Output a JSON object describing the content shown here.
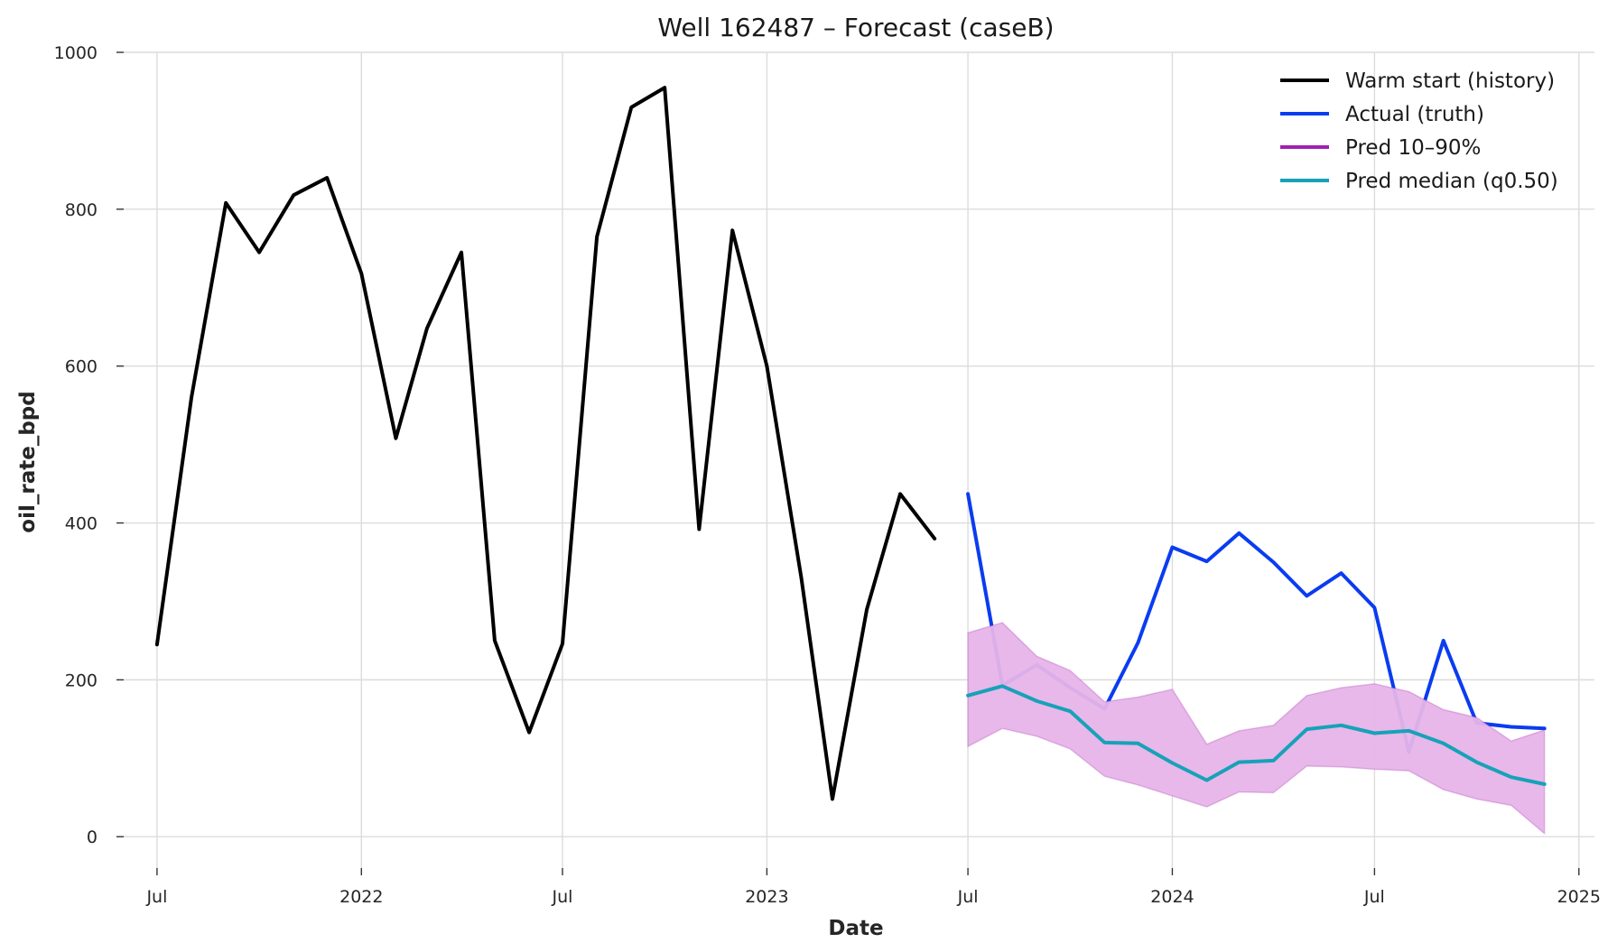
{
  "chart_data": {
    "type": "line",
    "title": "Well 162487 – Forecast (caseB)",
    "xlabel": "Date",
    "ylabel": "oil_rate_bpd",
    "xlim": [
      "2021-06-01",
      "2025-01-15"
    ],
    "ylim": [
      -40,
      1000
    ],
    "x_ticks": [
      {
        "date": "2021-07-01",
        "label": "Jul"
      },
      {
        "date": "2022-01-01",
        "label": "2022"
      },
      {
        "date": "2022-07-01",
        "label": "Jul"
      },
      {
        "date": "2023-01-01",
        "label": "2023"
      },
      {
        "date": "2023-07-01",
        "label": "Jul"
      },
      {
        "date": "2024-01-01",
        "label": "2024"
      },
      {
        "date": "2024-07-01",
        "label": "Jul"
      },
      {
        "date": "2025-01-01",
        "label": "2025"
      }
    ],
    "y_ticks": [
      0,
      200,
      400,
      600,
      800,
      1000
    ],
    "grid": true,
    "legend_position": "top-right",
    "series": [
      {
        "name": "Warm start (history)",
        "kind": "line",
        "color": "#000000",
        "points": [
          [
            "2021-07-01",
            245
          ],
          [
            "2021-08-01",
            560
          ],
          [
            "2021-09-01",
            808
          ],
          [
            "2021-10-01",
            745
          ],
          [
            "2021-11-01",
            818
          ],
          [
            "2021-12-01",
            840
          ],
          [
            "2022-01-01",
            718
          ],
          [
            "2022-02-01",
            508
          ],
          [
            "2022-03-01",
            648
          ],
          [
            "2022-04-01",
            745
          ],
          [
            "2022-05-01",
            250
          ],
          [
            "2022-06-01",
            133
          ],
          [
            "2022-07-01",
            246
          ],
          [
            "2022-08-01",
            765
          ],
          [
            "2022-09-01",
            930
          ],
          [
            "2022-10-01",
            955
          ],
          [
            "2022-11-01",
            392
          ],
          [
            "2022-12-01",
            773
          ],
          [
            "2023-01-01",
            600
          ],
          [
            "2023-02-01",
            330
          ],
          [
            "2023-03-01",
            48
          ],
          [
            "2023-04-01",
            290
          ],
          [
            "2023-05-01",
            437
          ],
          [
            "2023-06-01",
            380
          ]
        ]
      },
      {
        "name": "Actual (truth)",
        "kind": "line",
        "color": "#0a3cf0",
        "points": [
          [
            "2023-07-01",
            437
          ],
          [
            "2023-08-01",
            193
          ],
          [
            "2023-09-01",
            219
          ],
          [
            "2023-10-01",
            190
          ],
          [
            "2023-11-01",
            163
          ],
          [
            "2023-12-01",
            247
          ],
          [
            "2024-01-01",
            369
          ],
          [
            "2024-02-01",
            351
          ],
          [
            "2024-03-01",
            387
          ],
          [
            "2024-04-01",
            350
          ],
          [
            "2024-05-01",
            307
          ],
          [
            "2024-06-01",
            336
          ],
          [
            "2024-07-01",
            292
          ],
          [
            "2024-08-01",
            108
          ],
          [
            "2024-09-01",
            250
          ],
          [
            "2024-10-01",
            145
          ],
          [
            "2024-11-01",
            140
          ],
          [
            "2024-12-01",
            138
          ]
        ]
      },
      {
        "name": "Pred 10–90%",
        "kind": "band",
        "color": "#a020b0",
        "fill": "#e6b4e8",
        "points": [
          [
            "2023-07-01",
            115,
            260
          ],
          [
            "2023-08-01",
            138,
            273
          ],
          [
            "2023-09-01",
            128,
            230
          ],
          [
            "2023-10-01",
            112,
            212
          ],
          [
            "2023-11-01",
            77,
            172
          ],
          [
            "2023-12-01",
            66,
            178
          ],
          [
            "2024-01-01",
            52,
            188
          ],
          [
            "2024-02-01",
            38,
            118
          ],
          [
            "2024-03-01",
            57,
            135
          ],
          [
            "2024-04-01",
            56,
            142
          ],
          [
            "2024-05-01",
            90,
            180
          ],
          [
            "2024-06-01",
            89,
            190
          ],
          [
            "2024-07-01",
            86,
            195
          ],
          [
            "2024-08-01",
            84,
            185
          ],
          [
            "2024-09-01",
            60,
            162
          ],
          [
            "2024-10-01",
            48,
            152
          ],
          [
            "2024-11-01",
            40,
            122
          ],
          [
            "2024-12-01",
            4,
            136
          ]
        ]
      },
      {
        "name": "Pred median (q0.50)",
        "kind": "line",
        "color": "#17a2b8",
        "points": [
          [
            "2023-07-01",
            180
          ],
          [
            "2023-08-01",
            192
          ],
          [
            "2023-09-01",
            173
          ],
          [
            "2023-10-01",
            160
          ],
          [
            "2023-11-01",
            120
          ],
          [
            "2023-12-01",
            119
          ],
          [
            "2024-01-01",
            94
          ],
          [
            "2024-02-01",
            72
          ],
          [
            "2024-03-01",
            95
          ],
          [
            "2024-04-01",
            97
          ],
          [
            "2024-05-01",
            137
          ],
          [
            "2024-06-01",
            142
          ],
          [
            "2024-07-01",
            132
          ],
          [
            "2024-08-01",
            135
          ],
          [
            "2024-09-01",
            119
          ],
          [
            "2024-10-01",
            95
          ],
          [
            "2024-11-01",
            76
          ],
          [
            "2024-12-01",
            67
          ]
        ]
      }
    ]
  }
}
